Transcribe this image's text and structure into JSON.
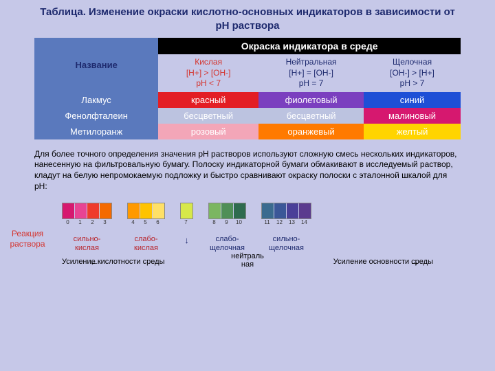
{
  "title": "Таблица. Изменение окраски кислотно-основных индикаторов в зависимости от рН раствора",
  "headers": {
    "name": "Название",
    "okraska": "Окраска  индикатора  в  среде",
    "acid": {
      "label": "Кислая",
      "formula": "[H+] > [OH-]",
      "ph": "рН < 7"
    },
    "neutral": {
      "label": "Нейтральная",
      "formula": "[H+] = [OH-]",
      "ph": "рН = 7"
    },
    "alk": {
      "label": "Щелочная",
      "formula": "[OH-] > [H+]",
      "ph": "рН > 7"
    }
  },
  "rows": [
    {
      "name": "Лакмус",
      "cells": [
        "красный",
        "фиолетовый",
        "синий"
      ],
      "bg": [
        "#e31e24",
        "#7b3fbf",
        "#1e4fd6"
      ]
    },
    {
      "name": "Фенолфталеин",
      "cells": [
        "бесцветный",
        "бесцветный",
        "малиновый"
      ],
      "bg": [
        "#bcc3e0",
        "#bcc3e0",
        "#d6186f"
      ]
    },
    {
      "name": "Метилоранж",
      "cells": [
        "розовый",
        "оранжевый",
        "желтый"
      ],
      "bg": [
        "#f3a6b8",
        "#ff7a00",
        "#ffd400"
      ]
    }
  ],
  "desc": "Для более точного определения значения рН растворов используют сложную смесь нескольких индикаторов, нанесенную на фильтровальную бумагу. Полоску индикаторной бумаги обмакивают в исследуемый раствор, кладут на белую непромокаемую подложку и быстро сравнивают окраску полоски с эталонной шкалой для рН:",
  "reaction": "Реакция раствора",
  "groups": [
    {
      "label": "сильно-\nкислая",
      "cls": "red",
      "sw": [
        "#d6186f",
        "#e84393",
        "#ef3b2c",
        "#f56a00"
      ],
      "ticks": [
        "0",
        "1",
        "2",
        "3"
      ]
    },
    {
      "label": "слабо-\nкислая",
      "cls": "red",
      "sw": [
        "#ff9900",
        "#ffc300",
        "#ffe066"
      ],
      "ticks": [
        "4",
        "5",
        "6"
      ]
    },
    {
      "label": "↓",
      "cls": "blue",
      "sw": [
        "#d7e84a"
      ],
      "ticks": [
        "7"
      ],
      "arrow": true
    },
    {
      "label": "слабо-\nщелочная",
      "cls": "blue",
      "sw": [
        "#7bb661",
        "#4f8f57",
        "#2e6b4e"
      ],
      "ticks": [
        "8",
        "9",
        "10"
      ]
    },
    {
      "label": "сильно-\nщелочная",
      "cls": "blue",
      "sw": [
        "#3b6b8f",
        "#3b5798",
        "#4a3f98",
        "#5b3a8e"
      ],
      "ticks": [
        "11",
        "12",
        "13",
        "14"
      ]
    }
  ],
  "neutralLabel": "нейтраль\nная",
  "bottom": {
    "left": "Усиление кислотности среды",
    "right": "Усиление основности среды",
    "arrL": "←",
    "arrR": "→"
  }
}
